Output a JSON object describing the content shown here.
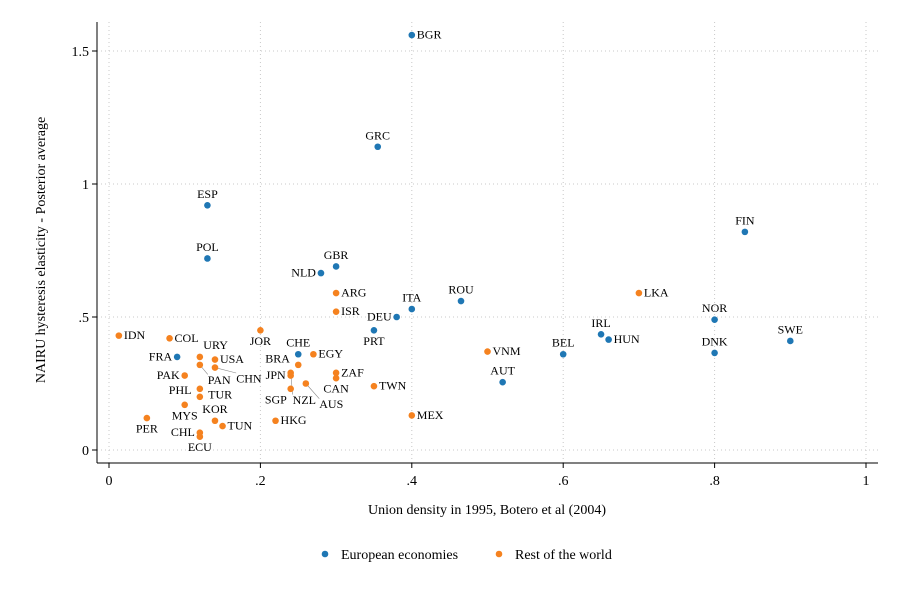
{
  "chart_data": {
    "type": "scatter",
    "xlabel": "Union density in 1995, Botero et al (2004)",
    "ylabel": "NAIRU hysteresis elasticity - Posterior average",
    "xlim": [
      0,
      1
    ],
    "ylim": [
      0,
      1.6
    ],
    "xticks": [
      0,
      0.2,
      0.4,
      0.6,
      0.8,
      1
    ],
    "xtick_labels": [
      "0",
      ".2",
      ".4",
      ".6",
      ".8",
      "1"
    ],
    "yticks": [
      0,
      0.5,
      1,
      1.5
    ],
    "ytick_labels": [
      "0",
      ".5",
      "1",
      "1.5"
    ],
    "grid": true,
    "legend_position": "bottom",
    "series": [
      {
        "name": "European economies",
        "color": "#1f77b4",
        "points": [
          {
            "label": "BGR",
            "x": 0.4,
            "y": 1.56
          },
          {
            "label": "GRC",
            "x": 0.355,
            "y": 1.14
          },
          {
            "label": "ESP",
            "x": 0.13,
            "y": 0.92
          },
          {
            "label": "POL",
            "x": 0.13,
            "y": 0.72
          },
          {
            "label": "NLD",
            "x": 0.28,
            "y": 0.665
          },
          {
            "label": "GBR",
            "x": 0.3,
            "y": 0.69
          },
          {
            "label": "DEU",
            "x": 0.38,
            "y": 0.5
          },
          {
            "label": "ITA",
            "x": 0.4,
            "y": 0.53
          },
          {
            "label": "PRT",
            "x": 0.35,
            "y": 0.45
          },
          {
            "label": "ROU",
            "x": 0.465,
            "y": 0.56
          },
          {
            "label": "AUT",
            "x": 0.52,
            "y": 0.255
          },
          {
            "label": "BEL",
            "x": 0.6,
            "y": 0.36
          },
          {
            "label": "IRL",
            "x": 0.65,
            "y": 0.435
          },
          {
            "label": "HUN",
            "x": 0.66,
            "y": 0.415
          },
          {
            "label": "FIN",
            "x": 0.84,
            "y": 0.82
          },
          {
            "label": "NOR",
            "x": 0.8,
            "y": 0.49
          },
          {
            "label": "DNK",
            "x": 0.8,
            "y": 0.365
          },
          {
            "label": "SWE",
            "x": 0.9,
            "y": 0.41
          },
          {
            "label": "FRA",
            "x": 0.09,
            "y": 0.35
          },
          {
            "label": "CHE",
            "x": 0.25,
            "y": 0.36
          }
        ]
      },
      {
        "name": "Rest of the world",
        "color": "#f5821f",
        "points": [
          {
            "label": "IDN",
            "x": 0.013,
            "y": 0.43
          },
          {
            "label": "COL",
            "x": 0.08,
            "y": 0.42
          },
          {
            "label": "URY",
            "x": 0.12,
            "y": 0.35
          },
          {
            "label": "USA",
            "x": 0.14,
            "y": 0.34
          },
          {
            "label": "PAN",
            "x": 0.12,
            "y": 0.32
          },
          {
            "label": "CHN",
            "x": 0.14,
            "y": 0.31
          },
          {
            "label": "PAK",
            "x": 0.1,
            "y": 0.28
          },
          {
            "label": "TUR",
            "x": 0.12,
            "y": 0.23
          },
          {
            "label": "PHL",
            "x": 0.12,
            "y": 0.2
          },
          {
            "label": "MYS",
            "x": 0.1,
            "y": 0.17
          },
          {
            "label": "PER",
            "x": 0.05,
            "y": 0.12
          },
          {
            "label": "KOR",
            "x": 0.14,
            "y": 0.11
          },
          {
            "label": "TUN",
            "x": 0.15,
            "y": 0.09
          },
          {
            "label": "CHL",
            "x": 0.12,
            "y": 0.065
          },
          {
            "label": "ECU",
            "x": 0.12,
            "y": 0.05
          },
          {
            "label": "JOR",
            "x": 0.2,
            "y": 0.45
          },
          {
            "label": "HKG",
            "x": 0.22,
            "y": 0.11
          },
          {
            "label": "EGY",
            "x": 0.27,
            "y": 0.36
          },
          {
            "label": "BRA",
            "x": 0.25,
            "y": 0.32
          },
          {
            "label": "NZL",
            "x": 0.24,
            "y": 0.29
          },
          {
            "label": "JPN",
            "x": 0.24,
            "y": 0.28
          },
          {
            "label": "ZAF",
            "x": 0.3,
            "y": 0.29
          },
          {
            "label": "CAN",
            "x": 0.3,
            "y": 0.27
          },
          {
            "label": "AUS",
            "x": 0.26,
            "y": 0.25
          },
          {
            "label": "SGP",
            "x": 0.24,
            "y": 0.23
          },
          {
            "label": "TWN",
            "x": 0.35,
            "y": 0.24
          },
          {
            "label": "MEX",
            "x": 0.4,
            "y": 0.13
          },
          {
            "label": "ARG",
            "x": 0.3,
            "y": 0.59
          },
          {
            "label": "ISR",
            "x": 0.3,
            "y": 0.52
          },
          {
            "label": "VNM",
            "x": 0.5,
            "y": 0.37
          },
          {
            "label": "LKA",
            "x": 0.7,
            "y": 0.59
          }
        ]
      }
    ]
  }
}
